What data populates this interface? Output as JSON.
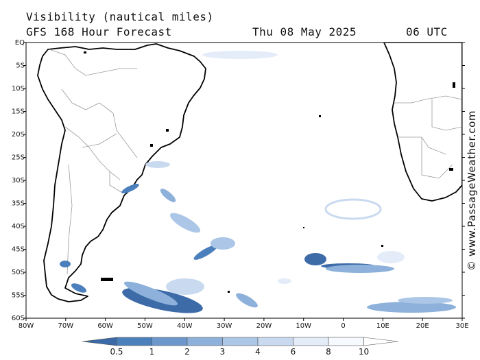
{
  "header": {
    "title": "Visibility (nautical miles)",
    "model": "GFS 168 Hour Forecast",
    "date": "Thu 08 May 2025",
    "time": "06 UTC"
  },
  "map": {
    "lon_range": [
      -80,
      30
    ],
    "lat_range": [
      -60,
      0
    ],
    "lat_labels": [
      "EQ",
      "5S",
      "10S",
      "15S",
      "20S",
      "25S",
      "30S",
      "35S",
      "40S",
      "45S",
      "50S",
      "55S",
      "60S"
    ],
    "lon_labels": [
      "80W",
      "70W",
      "60W",
      "50W",
      "40W",
      "30W",
      "20W",
      "10W",
      "0",
      "10E",
      "20E",
      "30E"
    ]
  },
  "colorbar": {
    "labels": [
      "0.5",
      "1",
      "2",
      "3",
      "4",
      "6",
      "8",
      "10"
    ],
    "colors": [
      "#3a6aa8",
      "#4c80bd",
      "#6c97cc",
      "#8db1da",
      "#abc6e6",
      "#c9daf0",
      "#e3ecf8",
      "#f6f9fd"
    ]
  },
  "credit": "© www.PassageWeather.com"
}
